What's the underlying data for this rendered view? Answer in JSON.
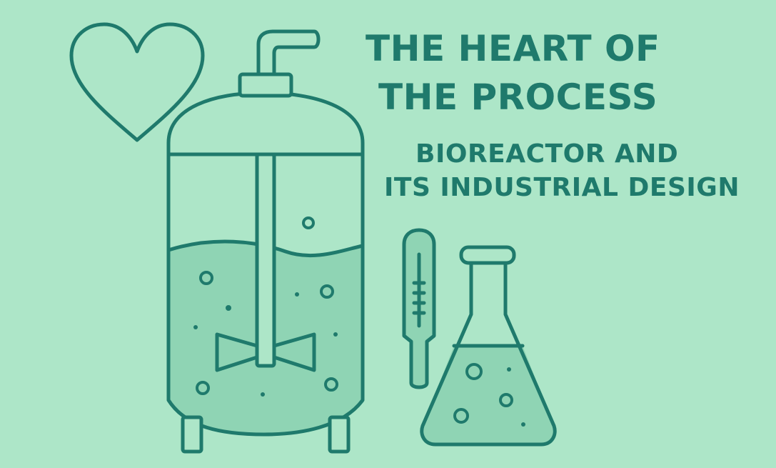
{
  "heading": {
    "line1": "THE HEART OF",
    "line2": "THE PROCESS"
  },
  "subheading": {
    "line1": "BIOREACTOR AND",
    "line2": "ITS INDUSTRIAL DESIGN"
  },
  "colors": {
    "background": "#ade6c8",
    "stroke": "#1f7a6c",
    "liquid": "#8fd4b4",
    "text": "#1f7a6c"
  },
  "icons": [
    "heart-icon",
    "bioreactor-icon",
    "thermometer-icon",
    "flask-icon"
  ]
}
